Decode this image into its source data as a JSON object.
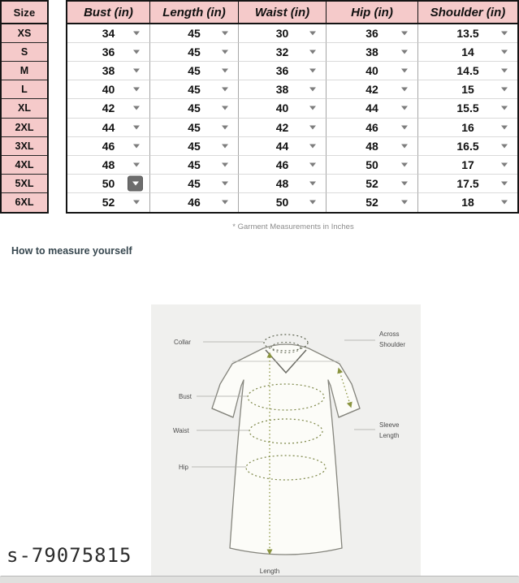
{
  "table": {
    "columns": [
      "Size",
      "Bust (in)",
      "Length (in)",
      "Waist (in)",
      "Hip (in)",
      "Shoulder (in)"
    ],
    "rows": [
      {
        "size": "XS",
        "values": [
          "34",
          "45",
          "30",
          "36",
          "13.5"
        ]
      },
      {
        "size": "S",
        "values": [
          "36",
          "45",
          "32",
          "38",
          "14"
        ]
      },
      {
        "size": "M",
        "values": [
          "38",
          "45",
          "36",
          "40",
          "14.5"
        ]
      },
      {
        "size": "L",
        "values": [
          "40",
          "45",
          "38",
          "42",
          "15"
        ]
      },
      {
        "size": "XL",
        "values": [
          "42",
          "45",
          "40",
          "44",
          "15.5"
        ]
      },
      {
        "size": "2XL",
        "values": [
          "44",
          "45",
          "42",
          "46",
          "16"
        ]
      },
      {
        "size": "3XL",
        "values": [
          "46",
          "45",
          "44",
          "48",
          "16.5"
        ]
      },
      {
        "size": "4XL",
        "values": [
          "48",
          "45",
          "46",
          "50",
          "17"
        ]
      },
      {
        "size": "5XL",
        "values": [
          "50",
          "45",
          "48",
          "52",
          "17.5"
        ]
      },
      {
        "size": "6XL",
        "values": [
          "52",
          "46",
          "50",
          "52",
          "18"
        ]
      }
    ],
    "active_dropdown": {
      "row": "5XL",
      "column": "Bust (in)"
    }
  },
  "footnote": "* Garment Measurements in Inches",
  "section_title": "How to measure yourself",
  "diagram": {
    "labels": {
      "collar": "Collar",
      "bust": "Bust",
      "waist": "Waist",
      "hip": "Hip",
      "across_shoulder_line1": "Across",
      "across_shoulder_line2": "Shoulder",
      "sleeve_length_line1": "Sleeve",
      "sleeve_length_line2": "Length",
      "length": "Length"
    }
  },
  "watermark": "s-79075815",
  "colors": {
    "header_pink": "#f5caca",
    "table_border": "#141414",
    "accent_olive": "#8a9440",
    "panel_bg": "#f0f0ee"
  }
}
